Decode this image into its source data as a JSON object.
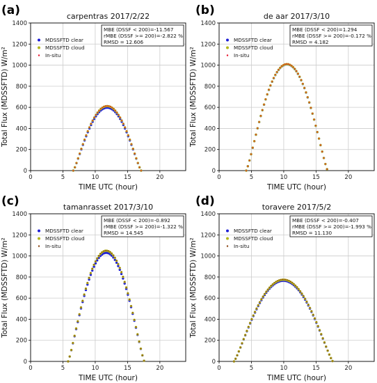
{
  "colors": {
    "clear": "#1f1fd6",
    "cloud": "#b5b81c",
    "insitu": "#e8132c",
    "grid": "#cccccc"
  },
  "chart_data": [
    {
      "type": "scatter",
      "panel_label": "(a)",
      "title": "carpentras  2017/2/22",
      "xlabel": "TIME UTC (hour)",
      "ylabel": "Total Flux (MDSSFTD) W/m²",
      "xlim": [
        0,
        24
      ],
      "ylim": [
        0,
        1400
      ],
      "xticks": [
        "0",
        "5",
        "10",
        "15",
        "20"
      ],
      "yticks": [
        "0",
        "200",
        "400",
        "600",
        "800",
        "1000",
        "1200",
        "1400"
      ],
      "grid": true,
      "legend_placement": "top-left",
      "stats": [
        "MBE (DSSF < 200)=-11.567",
        "rMBE (DSSF >= 200)=-2.822 %",
        "RMSD = 12.606"
      ],
      "series": [
        {
          "name": "MDSSFTD clear",
          "marker": "circle",
          "color": "#1f1fd6",
          "curve": {
            "start": 6.6,
            "end": 17.1,
            "peak": 597
          }
        },
        {
          "name": "MDSSFTD cloud",
          "marker": "circle",
          "color": "#b5b81c",
          "curve": {
            "start": 6.6,
            "end": 17.1,
            "peak": 612
          }
        },
        {
          "name": "In-situ",
          "marker": "dot",
          "color": "#e8132c",
          "curve": {
            "start": 6.6,
            "end": 17.1,
            "peak": 614
          }
        }
      ]
    },
    {
      "type": "scatter",
      "panel_label": "(b)",
      "title": "de aar  2017/3/10",
      "xlabel": "TIME UTC (hour)",
      "ylabel": "Total Flux (MDSSFTD) W/m²",
      "xlim": [
        0,
        24
      ],
      "ylim": [
        0,
        1400
      ],
      "xticks": [
        "0",
        "5",
        "10",
        "15",
        "20"
      ],
      "yticks": [
        "0",
        "200",
        "400",
        "600",
        "800",
        "1000",
        "1200",
        "1400"
      ],
      "grid": true,
      "legend_placement": "top-left",
      "stats": [
        "MBE (DSSF < 200)=1.294",
        "rMBE (DSSF >= 200)=-0.172 %",
        "RMSD = 4.182"
      ],
      "series": [
        {
          "name": "MDSSFTD clear",
          "marker": "circle",
          "color": "#1f1fd6",
          "curve": {
            "start": 4.2,
            "end": 16.8,
            "peak": 1008
          }
        },
        {
          "name": "MDSSFTD cloud",
          "marker": "circle",
          "color": "#b5b81c",
          "curve": {
            "start": 4.2,
            "end": 16.8,
            "peak": 1010
          }
        },
        {
          "name": "In-situ",
          "marker": "dot",
          "color": "#e8132c",
          "curve": {
            "start": 4.2,
            "end": 16.8,
            "peak": 1012
          }
        }
      ]
    },
    {
      "type": "scatter",
      "panel_label": "(c)",
      "title": "tamanrasset  2017/3/10",
      "xlabel": "TIME UTC (hour)",
      "ylabel": "Total Flux (MDSSFTD) W/m²",
      "xlim": [
        0,
        24
      ],
      "ylim": [
        0,
        1400
      ],
      "xticks": [
        "0",
        "5",
        "10",
        "15",
        "20"
      ],
      "yticks": [
        "0",
        "200",
        "400",
        "600",
        "800",
        "1000",
        "1200",
        "1400"
      ],
      "grid": true,
      "legend_placement": "top-left",
      "stats": [
        "MBE (DSSF < 200)=-0.892",
        "rMBE (DSSF >= 200)=-1.322 %",
        "RMSD = 14.545"
      ],
      "series": [
        {
          "name": "MDSSFTD clear",
          "marker": "circle",
          "color": "#1f1fd6",
          "curve": {
            "start": 5.8,
            "end": 17.6,
            "peak": 1030
          }
        },
        {
          "name": "MDSSFTD cloud",
          "marker": "circle",
          "color": "#b5b81c",
          "curve": {
            "start": 5.8,
            "end": 17.6,
            "peak": 1050
          }
        },
        {
          "name": "In-situ",
          "marker": "dot",
          "color": "#8b4513",
          "curve": {
            "start": 5.8,
            "end": 17.6,
            "peak": 1052
          }
        }
      ]
    },
    {
      "type": "scatter",
      "panel_label": "(d)",
      "title": "toravere  2017/5/2",
      "xlabel": "TIME UTC (hour)",
      "ylabel": "Total Flux (MDSSFTD) W/m²",
      "xlim": [
        0,
        24
      ],
      "ylim": [
        0,
        1400
      ],
      "xticks": [
        "0",
        "5",
        "10",
        "15",
        "20"
      ],
      "yticks": [
        "0",
        "200",
        "400",
        "600",
        "800",
        "1000",
        "1200",
        "1400"
      ],
      "grid": true,
      "legend_placement": "top-left",
      "stats": [
        "MBE (DSSF < 200)=-0.407",
        "rMBE (DSSF >= 200)=-1.993 %",
        "RMSD = 11.130"
      ],
      "series": [
        {
          "name": "MDSSFTD clear",
          "marker": "circle",
          "color": "#1f1fd6",
          "curve": {
            "start": 2.3,
            "end": 17.6,
            "peak": 765
          }
        },
        {
          "name": "MDSSFTD cloud",
          "marker": "circle",
          "color": "#b5b81c",
          "curve": {
            "start": 2.3,
            "end": 17.6,
            "peak": 775
          }
        },
        {
          "name": "In-situ",
          "marker": "dot",
          "color": "#8b4513",
          "curve": {
            "start": 2.3,
            "end": 17.6,
            "peak": 778
          }
        }
      ]
    }
  ]
}
